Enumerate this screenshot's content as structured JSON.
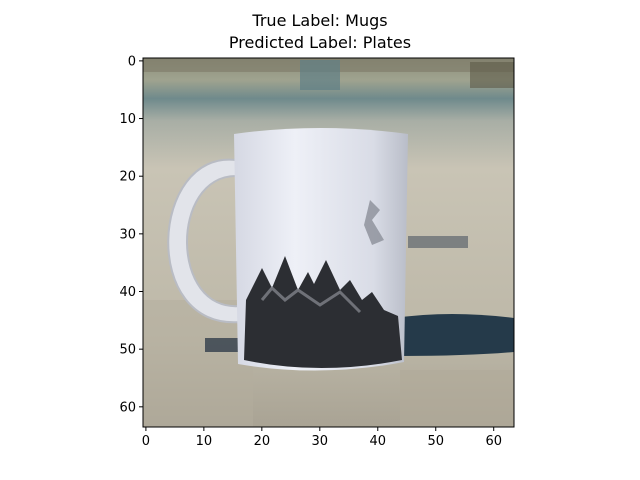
{
  "figure": {
    "title_line1": "True Label: Mugs",
    "title_line2": "Predicted Label: Plates"
  },
  "image_axes": {
    "xlim": [
      -0.5,
      63.5
    ],
    "ylim": [
      63.5,
      -0.5
    ],
    "xticks": [
      0,
      10,
      20,
      30,
      40,
      50,
      60
    ],
    "yticks": [
      0,
      10,
      20,
      30,
      40,
      50,
      60
    ],
    "colors": {
      "sky_top": "#8f9f8a",
      "ocean_band": "#6f8a8c",
      "sand": "#c9c4b5",
      "sand_dark": "#aaa597",
      "mug_body": "#e6e8f2",
      "mug_shadow": "#bfc3cc",
      "mountain_print": "#2c2e33",
      "shadow_blue": "#253a4a"
    }
  }
}
